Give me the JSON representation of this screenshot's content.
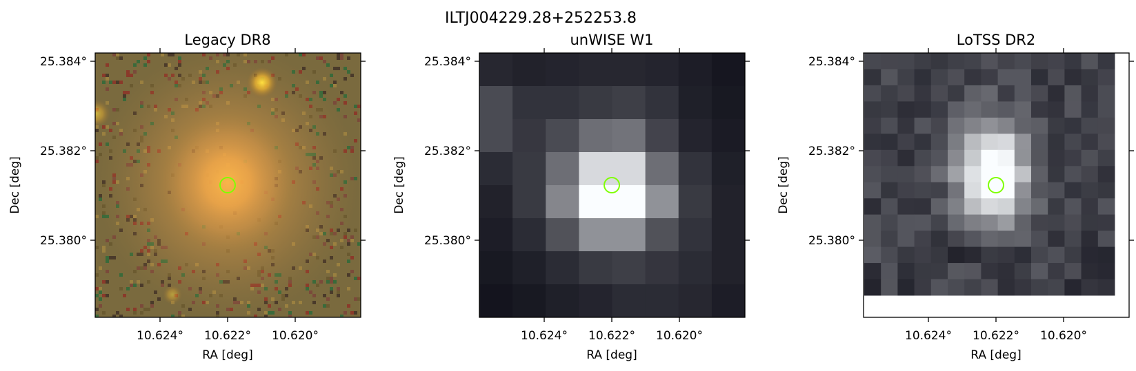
{
  "figure": {
    "title": "ILTJ004229.28+252253.8"
  },
  "panels": [
    {
      "title": "Legacy DR8",
      "xlabel": "RA [deg]",
      "ylabel": "Dec [deg]",
      "xticks": [
        "10.624°",
        "10.622°",
        "10.620°"
      ],
      "yticks": [
        "25.384°",
        "25.382°",
        "25.380°"
      ],
      "marker_color": "#7fff00"
    },
    {
      "title": "unWISE W1",
      "xlabel": "RA [deg]",
      "ylabel": "Dec [deg]",
      "xticks": [
        "10.624°",
        "10.622°",
        "10.620°"
      ],
      "yticks": [
        "25.384°",
        "25.382°",
        "25.380°"
      ],
      "marker_color": "#7fff00"
    },
    {
      "title": "LoTSS DR2",
      "xlabel": "RA [deg]",
      "ylabel": "Dec [deg]",
      "xticks": [
        "10.624°",
        "10.622°",
        "10.620°"
      ],
      "yticks": [
        "25.384°",
        "25.382°",
        "25.380°"
      ],
      "marker_color": "#7fff00"
    }
  ]
}
